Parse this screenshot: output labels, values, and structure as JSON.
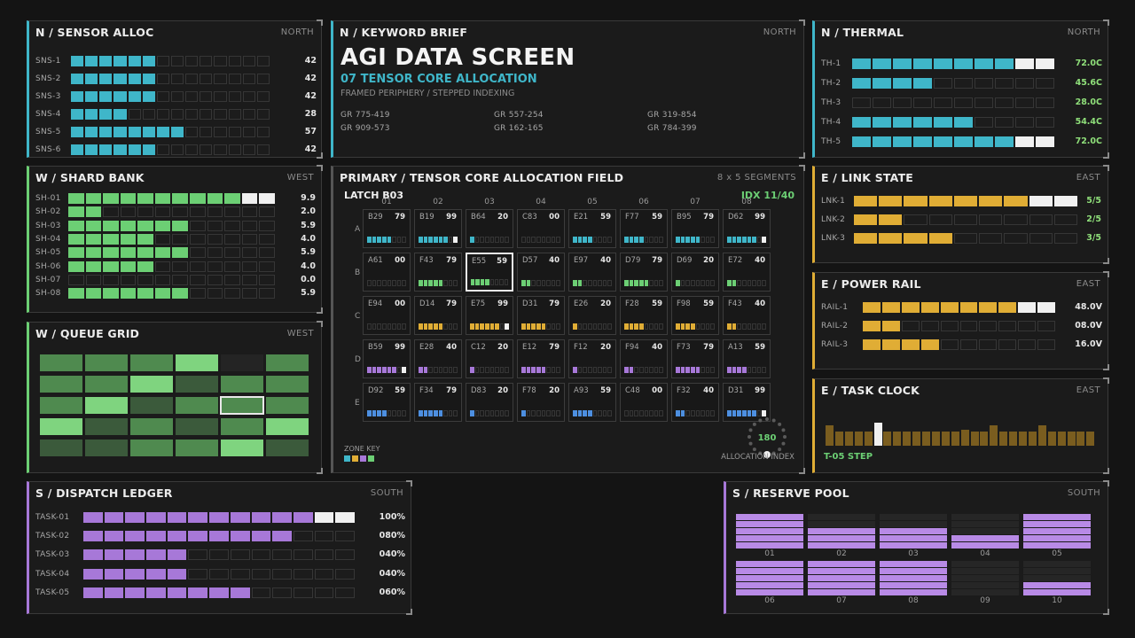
{
  "sensor_alloc": {
    "title": "N / SENSOR ALLOC",
    "dir": "NORTH",
    "color": "#3fb6c9",
    "rows": [
      {
        "label": "SNS-1",
        "value": "42",
        "fill": 0.42
      },
      {
        "label": "SNS-2",
        "value": "42",
        "fill": 0.42
      },
      {
        "label": "SNS-3",
        "value": "42",
        "fill": 0.42
      },
      {
        "label": "SNS-4",
        "value": "28",
        "fill": 0.28
      },
      {
        "label": "SNS-5",
        "value": "57",
        "fill": 0.57
      },
      {
        "label": "SNS-6",
        "value": "42",
        "fill": 0.42
      }
    ]
  },
  "keyword_brief": {
    "title": "N / KEYWORD BRIEF",
    "dir": "NORTH",
    "headline": "AGI DATA SCREEN",
    "subhead": "07 TENSOR CORE ALLOCATION",
    "tagline": "FRAMED PERIPHERY / STEPPED INDEXING",
    "refs": [
      "GR 775-419",
      "GR 557-254",
      "GR 319-854",
      "GR 909-573",
      "GR 162-165",
      "GR 784-399"
    ]
  },
  "thermal": {
    "title": "N / THERMAL",
    "dir": "NORTH",
    "color": "#3fb6c9",
    "rows": [
      {
        "label": "TH-1",
        "value": "72.0C",
        "fill": 1.0
      },
      {
        "label": "TH-2",
        "value": "45.6C",
        "fill": 0.4
      },
      {
        "label": "TH-3",
        "value": "28.0C",
        "fill": 0.0
      },
      {
        "label": "TH-4",
        "value": "54.4C",
        "fill": 0.6
      },
      {
        "label": "TH-5",
        "value": "72.0C",
        "fill": 1.0
      }
    ]
  },
  "shard_bank": {
    "title": "W / SHARD BANK",
    "dir": "WEST",
    "color": "#6ccf74",
    "rows": [
      {
        "label": "SH-01",
        "value": "9.9",
        "fill": 1.0
      },
      {
        "label": "SH-02",
        "value": "2.0",
        "fill": 0.2
      },
      {
        "label": "SH-03",
        "value": "5.9",
        "fill": 0.6
      },
      {
        "label": "SH-04",
        "value": "4.0",
        "fill": 0.4
      },
      {
        "label": "SH-05",
        "value": "5.9",
        "fill": 0.6
      },
      {
        "label": "SH-06",
        "value": "4.0",
        "fill": 0.4
      },
      {
        "label": "SH-07",
        "value": "0.0",
        "fill": 0.0
      },
      {
        "label": "SH-08",
        "value": "5.9",
        "fill": 0.6
      }
    ]
  },
  "queue_grid": {
    "title": "W / QUEUE GRID",
    "dir": "WEST",
    "levels": [
      [
        2,
        2,
        2,
        3,
        0,
        2
      ],
      [
        2,
        2,
        3,
        1,
        2,
        2
      ],
      [
        2,
        3,
        1,
        2,
        2,
        2
      ],
      [
        3,
        1,
        2,
        1,
        2,
        3
      ],
      [
        1,
        1,
        2,
        2,
        3,
        1
      ]
    ],
    "selected": [
      2,
      4
    ]
  },
  "field": {
    "title": "PRIMARY / TENSOR CORE ALLOCATION FIELD",
    "dims": "8 x 5 SEGMENTS",
    "latch": "LATCH B03",
    "idx": "IDX 11/40",
    "cols": [
      "01",
      "02",
      "03",
      "04",
      "05",
      "06",
      "07",
      "08"
    ],
    "rows": [
      "A",
      "B",
      "C",
      "D",
      "E"
    ],
    "row_colors": [
      "#3fb6c9",
      "#6ccf74",
      "#e0ad35",
      "#a778d8",
      "#4d8fe0"
    ],
    "cells": [
      [
        {
          "id": "B29",
          "v": "79"
        },
        {
          "id": "B19",
          "v": "99"
        },
        {
          "id": "B64",
          "v": "20"
        },
        {
          "id": "C83",
          "v": "00"
        },
        {
          "id": "E21",
          "v": "59"
        },
        {
          "id": "F77",
          "v": "59"
        },
        {
          "id": "B95",
          "v": "79"
        },
        {
          "id": "D62",
          "v": "99"
        }
      ],
      [
        {
          "id": "A61",
          "v": "00"
        },
        {
          "id": "F43",
          "v": "79"
        },
        {
          "id": "E55",
          "v": "59"
        },
        {
          "id": "D57",
          "v": "40"
        },
        {
          "id": "E97",
          "v": "40"
        },
        {
          "id": "D79",
          "v": "79"
        },
        {
          "id": "D69",
          "v": "20"
        },
        {
          "id": "E72",
          "v": "40"
        }
      ],
      [
        {
          "id": "E94",
          "v": "00"
        },
        {
          "id": "D14",
          "v": "79"
        },
        {
          "id": "E75",
          "v": "99"
        },
        {
          "id": "D31",
          "v": "79"
        },
        {
          "id": "E26",
          "v": "20"
        },
        {
          "id": "F28",
          "v": "59"
        },
        {
          "id": "F98",
          "v": "59"
        },
        {
          "id": "F43",
          "v": "40"
        }
      ],
      [
        {
          "id": "B59",
          "v": "99"
        },
        {
          "id": "E28",
          "v": "40"
        },
        {
          "id": "C12",
          "v": "20"
        },
        {
          "id": "E12",
          "v": "79"
        },
        {
          "id": "F12",
          "v": "20"
        },
        {
          "id": "F94",
          "v": "40"
        },
        {
          "id": "F73",
          "v": "79"
        },
        {
          "id": "A13",
          "v": "59"
        }
      ],
      [
        {
          "id": "D92",
          "v": "59"
        },
        {
          "id": "F34",
          "v": "79"
        },
        {
          "id": "D83",
          "v": "20"
        },
        {
          "id": "F78",
          "v": "20"
        },
        {
          "id": "A93",
          "v": "59"
        },
        {
          "id": "C48",
          "v": "00"
        },
        {
          "id": "F32",
          "v": "40"
        },
        {
          "id": "D31",
          "v": "99"
        }
      ]
    ],
    "selected": [
      1,
      2
    ],
    "zone_key": "ZONE KEY",
    "dial_value": "180",
    "dial_label": "ALLOCATION INDEX"
  },
  "link_state": {
    "title": "E / LINK STATE",
    "dir": "EAST",
    "color": "#e0ad35",
    "rows": [
      {
        "label": "LNK-1",
        "value": "5/5",
        "fill": 1.0
      },
      {
        "label": "LNK-2",
        "value": "2/5",
        "fill": 0.2
      },
      {
        "label": "LNK-3",
        "value": "3/5",
        "fill": 0.4
      }
    ]
  },
  "power_rail": {
    "title": "E / POWER RAIL",
    "dir": "EAST",
    "color": "#e0ad35",
    "rows": [
      {
        "label": "RAIL-1",
        "value": "48.0V",
        "fill": 1.0
      },
      {
        "label": "RAIL-2",
        "value": "08.0V",
        "fill": 0.2
      },
      {
        "label": "RAIL-3",
        "value": "16.0V",
        "fill": 0.4
      }
    ]
  },
  "task_clock": {
    "title": "E / TASK CLOCK",
    "dir": "EAST",
    "step": "T-05 STEP",
    "bars": [
      0.9,
      0.6,
      0.6,
      0.6,
      0.6,
      1.0,
      0.6,
      0.6,
      0.6,
      0.6,
      0.6,
      0.6,
      0.6,
      0.6,
      0.7,
      0.6,
      0.6,
      0.9,
      0.6,
      0.6,
      0.6,
      0.6,
      0.9,
      0.6,
      0.6,
      0.6,
      0.6,
      0.6
    ],
    "highlight": 5
  },
  "dispatch_ledger": {
    "title": "S / DISPATCH LEDGER",
    "dir": "SOUTH",
    "color": "#a778d8",
    "rows": [
      {
        "label": "TASK-01",
        "value": "100%",
        "fill": 1.0
      },
      {
        "label": "TASK-02",
        "value": "080%",
        "fill": 0.8
      },
      {
        "label": "TASK-03",
        "value": "040%",
        "fill": 0.4
      },
      {
        "label": "TASK-04",
        "value": "040%",
        "fill": 0.4
      },
      {
        "label": "TASK-05",
        "value": "060%",
        "fill": 0.6
      }
    ]
  },
  "reserve_pool": {
    "title": "S / RESERVE POOL",
    "dir": "SOUTH",
    "pools": [
      {
        "label": "01",
        "fill": 5
      },
      {
        "label": "02",
        "fill": 3
      },
      {
        "label": "03",
        "fill": 3
      },
      {
        "label": "04",
        "fill": 2
      },
      {
        "label": "05",
        "fill": 5
      },
      {
        "label": "06",
        "fill": 5
      },
      {
        "label": "07",
        "fill": 5
      },
      {
        "label": "08",
        "fill": 5
      },
      {
        "label": "09",
        "fill": 0
      },
      {
        "label": "10",
        "fill": 2
      }
    ]
  }
}
